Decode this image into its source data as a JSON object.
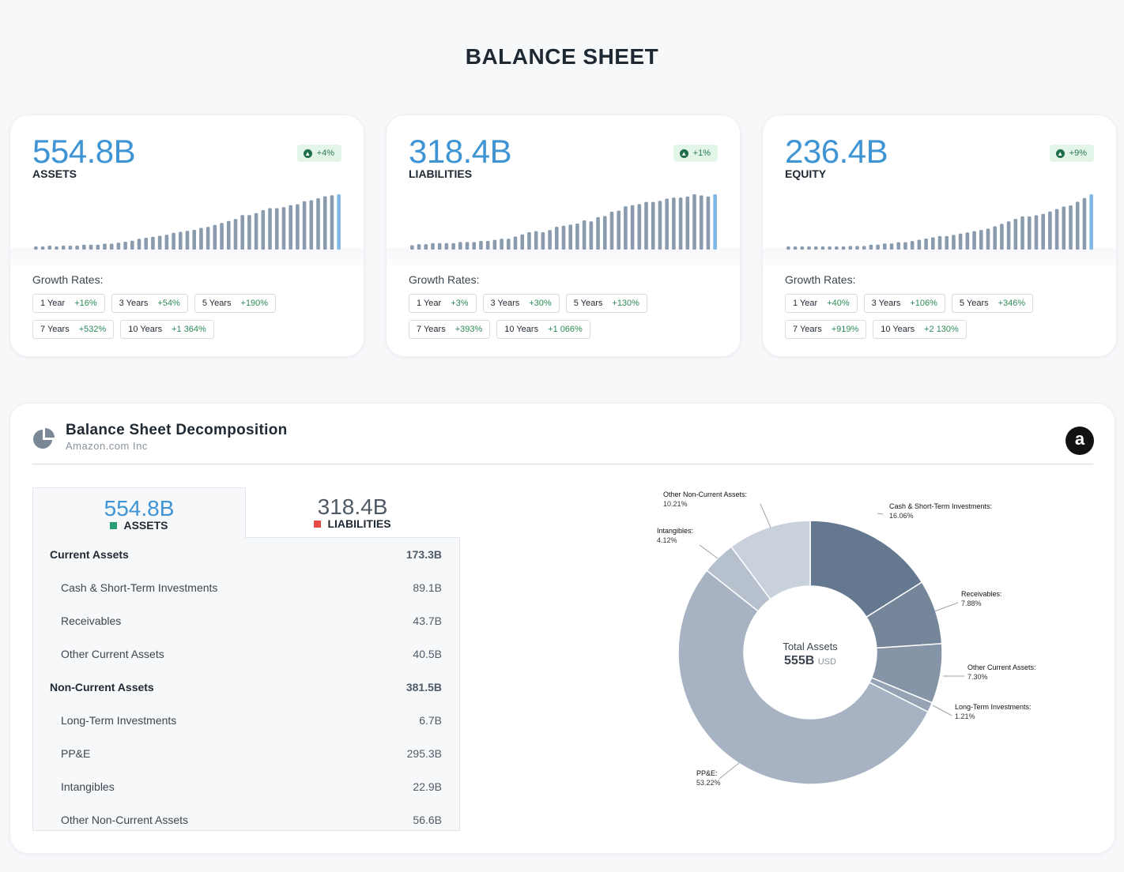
{
  "title": "BALANCE SHEET",
  "cards": [
    {
      "value": "554.8B",
      "label": "ASSETS",
      "change": "+4%",
      "bars": [
        3,
        3,
        4,
        3,
        4,
        4,
        4,
        5,
        5,
        5,
        6,
        6,
        7,
        8,
        9,
        11,
        12,
        13,
        14,
        15,
        17,
        18,
        19,
        20,
        22,
        23,
        25,
        27,
        29,
        31,
        35,
        35,
        37,
        40,
        42,
        42,
        43,
        45,
        46,
        49,
        50,
        52,
        54,
        55,
        56
      ],
      "growth_title": "Growth Rates:",
      "growth": [
        {
          "period": "1 Year",
          "value": "+16%"
        },
        {
          "period": "3 Years",
          "value": "+54%"
        },
        {
          "period": "5 Years",
          "value": "+190%"
        },
        {
          "period": "7 Years",
          "value": "+532%"
        },
        {
          "period": "10 Years",
          "value": "+1 364%"
        }
      ]
    },
    {
      "value": "318.4B",
      "label": "LIABILITIES",
      "change": "+1%",
      "bars": [
        4,
        5,
        5,
        6,
        6,
        6,
        6,
        7,
        7,
        7,
        8,
        8,
        9,
        10,
        10,
        12,
        14,
        16,
        17,
        16,
        18,
        21,
        22,
        23,
        24,
        27,
        26,
        30,
        31,
        35,
        36,
        40,
        41,
        42,
        44,
        44,
        45,
        47,
        48,
        48,
        49,
        51,
        50,
        49,
        51
      ],
      "growth_title": "Growth Rates:",
      "growth": [
        {
          "period": "1 Year",
          "value": "+3%"
        },
        {
          "period": "3 Years",
          "value": "+30%"
        },
        {
          "period": "5 Years",
          "value": "+130%"
        },
        {
          "period": "7 Years",
          "value": "+393%"
        },
        {
          "period": "10 Years",
          "value": "+1 066%"
        }
      ]
    },
    {
      "value": "236.4B",
      "label": "EQUITY",
      "change": "+9%",
      "bars": [
        1,
        1,
        1,
        1,
        1,
        2,
        2,
        2,
        2,
        3,
        3,
        3,
        4,
        4,
        5,
        5,
        6,
        6,
        7,
        8,
        9,
        10,
        11,
        11,
        12,
        13,
        14,
        15,
        16,
        17,
        19,
        21,
        23,
        25,
        27,
        27,
        28,
        29,
        31,
        33,
        35,
        36,
        39,
        42,
        45
      ],
      "growth_title": "Growth Rates:",
      "growth": [
        {
          "period": "1 Year",
          "value": "+40%"
        },
        {
          "period": "3 Years",
          "value": "+106%"
        },
        {
          "period": "5 Years",
          "value": "+346%"
        },
        {
          "period": "7 Years",
          "value": "+919%"
        },
        {
          "period": "10 Years",
          "value": "+2 130%"
        }
      ]
    }
  ],
  "decomposition": {
    "title": "Balance Sheet Decomposition",
    "company": "Amazon.com Inc",
    "logo_letter": "a",
    "tabs": [
      {
        "value": "554.8B",
        "label": "ASSETS",
        "color": "#2a9d74"
      },
      {
        "value": "318.4B",
        "label": "LIABILITIES",
        "color": "#e84a4a"
      }
    ],
    "rows": [
      {
        "name": "Current Assets",
        "value": "173.3B",
        "level": "head"
      },
      {
        "name": "Cash & Short-Term Investments",
        "value": "89.1B",
        "level": "sub"
      },
      {
        "name": "Receivables",
        "value": "43.7B",
        "level": "sub"
      },
      {
        "name": "Other Current Assets",
        "value": "40.5B",
        "level": "sub"
      },
      {
        "name": "Non-Current Assets",
        "value": "381.5B",
        "level": "head"
      },
      {
        "name": "Long-Term Investments",
        "value": "6.7B",
        "level": "sub"
      },
      {
        "name": "PP&E",
        "value": "295.3B",
        "level": "sub"
      },
      {
        "name": "Intangibles",
        "value": "22.9B",
        "level": "sub"
      },
      {
        "name": "Other Non-Current Assets",
        "value": "56.6B",
        "level": "sub"
      }
    ],
    "center_label": "Total Assets",
    "center_value": "555B",
    "center_unit": "USD"
  },
  "chart_data": [
    {
      "type": "bar",
      "title": "ASSETS",
      "series": [
        {
          "values": [
            3,
            3,
            4,
            3,
            4,
            4,
            4,
            5,
            5,
            5,
            6,
            6,
            7,
            8,
            9,
            11,
            12,
            13,
            14,
            15,
            17,
            18,
            19,
            20,
            22,
            23,
            25,
            27,
            29,
            31,
            35,
            35,
            37,
            40,
            42,
            42,
            43,
            45,
            46,
            49,
            50,
            52,
            54,
            55,
            56
          ]
        }
      ]
    },
    {
      "type": "bar",
      "title": "LIABILITIES",
      "series": [
        {
          "values": [
            4,
            5,
            5,
            6,
            6,
            6,
            6,
            7,
            7,
            7,
            8,
            8,
            9,
            10,
            10,
            12,
            14,
            16,
            17,
            16,
            18,
            21,
            22,
            23,
            24,
            27,
            26,
            30,
            31,
            35,
            36,
            40,
            41,
            42,
            44,
            44,
            45,
            47,
            48,
            48,
            49,
            51,
            50,
            49,
            51
          ]
        }
      ]
    },
    {
      "type": "bar",
      "title": "EQUITY",
      "series": [
        {
          "values": [
            1,
            1,
            1,
            1,
            1,
            2,
            2,
            2,
            2,
            3,
            3,
            3,
            4,
            4,
            5,
            5,
            6,
            6,
            7,
            8,
            9,
            10,
            11,
            11,
            12,
            13,
            14,
            15,
            16,
            17,
            19,
            21,
            23,
            25,
            27,
            27,
            28,
            29,
            31,
            33,
            35,
            36,
            39,
            42,
            45
          ]
        }
      ]
    },
    {
      "type": "pie",
      "title": "Total Assets",
      "slices": [
        {
          "label": "Cash & Short-Term Investments:",
          "pct": "16.06%",
          "value": 16.06,
          "color": "#647890"
        },
        {
          "label": "Receivables:",
          "pct": "7.88%",
          "value": 7.88,
          "color": "#75869b"
        },
        {
          "label": "Other Current Assets:",
          "pct": "7.30%",
          "value": 7.3,
          "color": "#8594a7"
        },
        {
          "label": "Long-Term Investments:",
          "pct": "1.21%",
          "value": 1.21,
          "color": "#96a3b4"
        },
        {
          "label": "PP&E:",
          "pct": "53.22%",
          "value": 53.22,
          "color": "#a7b3c3"
        },
        {
          "label": "Intangibles:",
          "pct": "4.12%",
          "value": 4.12,
          "color": "#b7c1ce"
        },
        {
          "label": "Other Non-Current Assets:",
          "pct": "10.21%",
          "value": 10.21,
          "color": "#c8d1dc"
        }
      ]
    }
  ]
}
